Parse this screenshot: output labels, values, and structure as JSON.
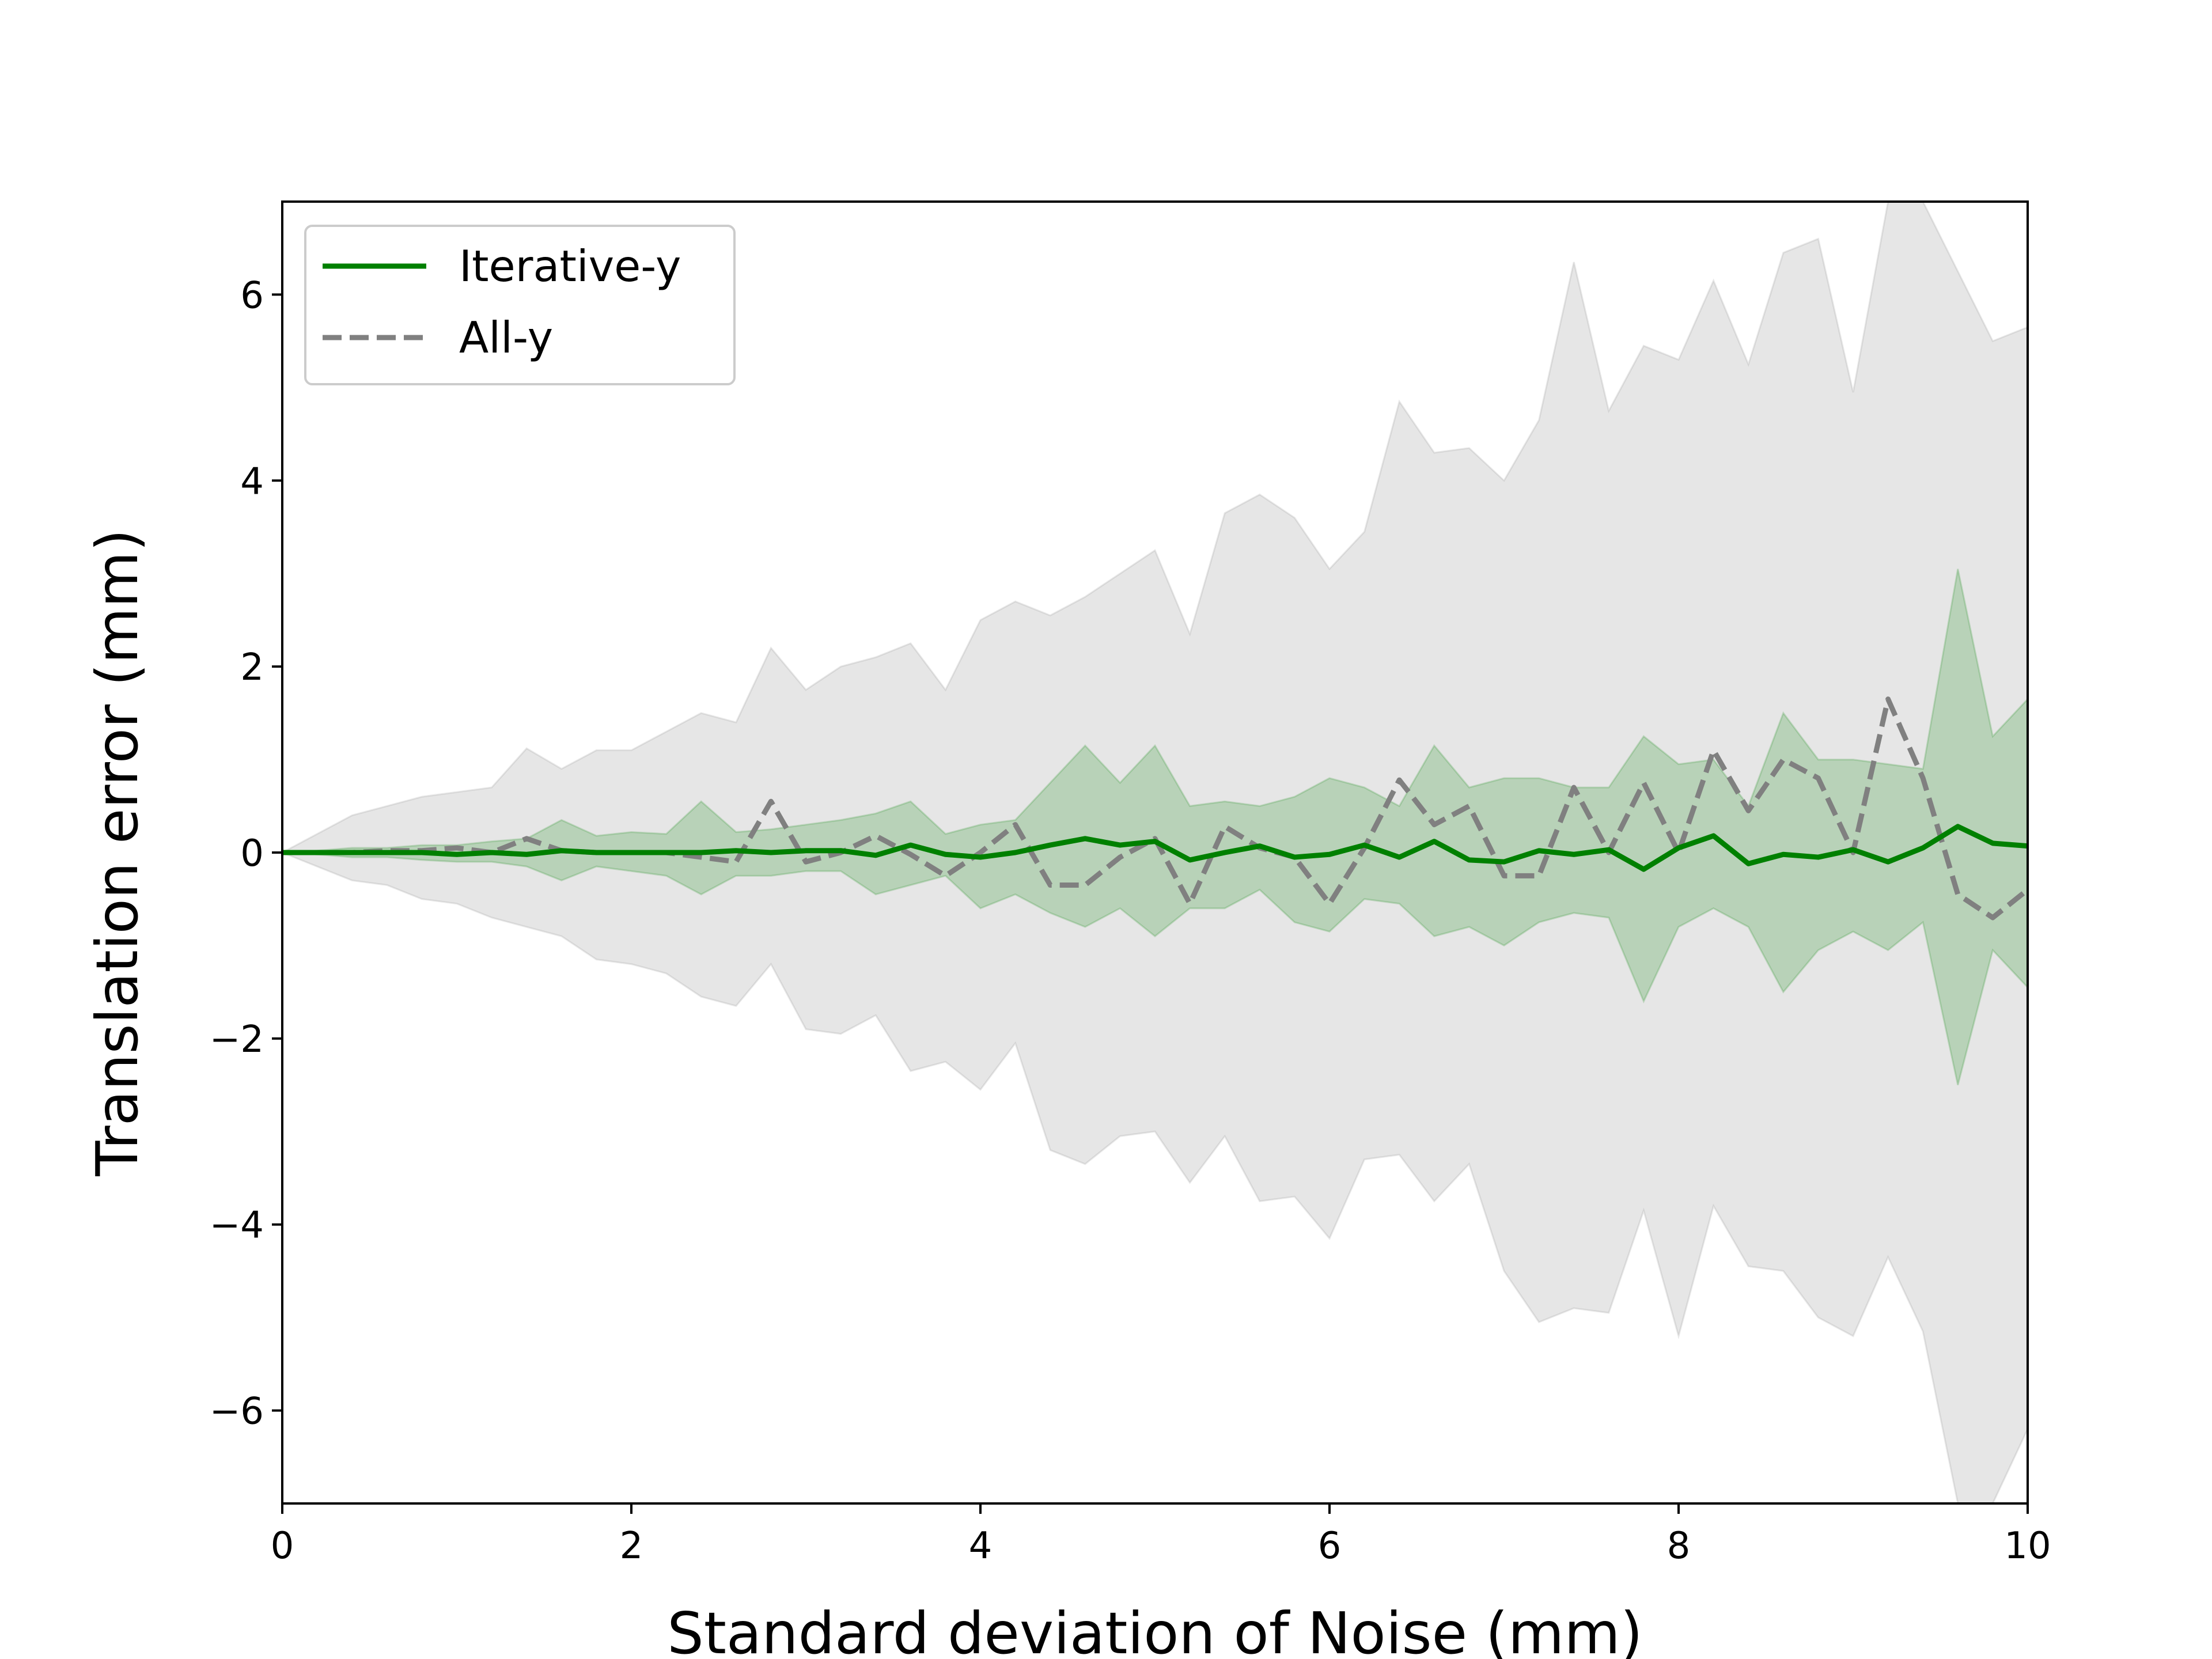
{
  "chart_data": {
    "type": "line",
    "xlabel": "Standard deviation of Noise (mm)",
    "ylabel": "Translation error (mm)",
    "xlim": [
      0,
      10
    ],
    "ylim": [
      -7,
      7
    ],
    "xticks": [
      0,
      2,
      4,
      6,
      8,
      10
    ],
    "xtick_labels": [
      "0",
      "2",
      "4",
      "6",
      "8",
      "10"
    ],
    "yticks": [
      -6,
      -4,
      -2,
      0,
      2,
      4,
      6
    ],
    "ytick_labels": [
      "−6",
      "−4",
      "−2",
      "0",
      "2",
      "4",
      "6"
    ],
    "grid": false,
    "legend_position": "upper-left",
    "x": [
      0,
      0.2,
      0.4,
      0.6,
      0.8,
      1.0,
      1.2,
      1.4,
      1.6,
      1.8,
      2.0,
      2.2,
      2.4,
      2.6,
      2.8,
      3.0,
      3.2,
      3.4,
      3.6,
      3.8,
      4.0,
      4.2,
      4.4,
      4.6,
      4.8,
      5.0,
      5.2,
      5.4,
      5.6,
      5.8,
      6.0,
      6.2,
      6.4,
      6.6,
      6.8,
      7.0,
      7.2,
      7.4,
      7.6,
      7.8,
      8.0,
      8.2,
      8.4,
      8.6,
      8.8,
      9.0,
      9.2,
      9.4,
      9.6,
      9.8,
      10.0
    ],
    "series": [
      {
        "name": "Iterative-y",
        "color": "#008000",
        "style": "solid",
        "values": [
          0,
          0,
          0,
          0,
          0,
          -0.02,
          0,
          -0.02,
          0.02,
          0,
          0,
          0,
          0,
          0.02,
          0,
          0.02,
          0.02,
          -0.03,
          0.08,
          -0.02,
          -0.05,
          0,
          0.08,
          0.15,
          0.08,
          0.12,
          -0.08,
          0,
          0.07,
          -0.05,
          -0.02,
          0.08,
          -0.05,
          0.12,
          -0.08,
          -0.1,
          0.02,
          -0.02,
          0.03,
          -0.18,
          0.05,
          0.18,
          -0.12,
          -0.02,
          -0.05,
          0.03,
          -0.1,
          0.05,
          0.28,
          0.1,
          0.07
        ],
        "band_upper": [
          0,
          0.02,
          0.05,
          0.05,
          0.08,
          0.08,
          0.12,
          0.15,
          0.35,
          0.18,
          0.22,
          0.2,
          0.55,
          0.22,
          0.25,
          0.3,
          0.35,
          0.42,
          0.55,
          0.2,
          0.3,
          0.35,
          0.75,
          1.15,
          0.75,
          1.15,
          0.5,
          0.55,
          0.5,
          0.6,
          0.8,
          0.7,
          0.5,
          1.15,
          0.7,
          0.8,
          0.8,
          0.7,
          0.7,
          1.25,
          0.95,
          1.0,
          0.5,
          1.5,
          1.0,
          1.0,
          0.95,
          0.9,
          3.05,
          1.25,
          1.65
        ],
        "band_lower": [
          0,
          -0.02,
          -0.05,
          -0.05,
          -0.08,
          -0.1,
          -0.1,
          -0.15,
          -0.3,
          -0.15,
          -0.2,
          -0.25,
          -0.45,
          -0.25,
          -0.25,
          -0.2,
          -0.2,
          -0.45,
          -0.35,
          -0.25,
          -0.6,
          -0.45,
          -0.65,
          -0.8,
          -0.6,
          -0.9,
          -0.6,
          -0.6,
          -0.4,
          -0.75,
          -0.85,
          -0.5,
          -0.55,
          -0.9,
          -0.8,
          -1.0,
          -0.75,
          -0.65,
          -0.7,
          -1.6,
          -0.8,
          -0.6,
          -0.8,
          -1.5,
          -1.05,
          -0.85,
          -1.05,
          -0.75,
          -2.5,
          -1.05,
          -1.45
        ]
      },
      {
        "name": "All-y",
        "color": "#808080",
        "style": "dashed",
        "values": [
          0,
          0,
          0,
          0.02,
          0.02,
          0.05,
          0,
          0.15,
          0.02,
          0,
          0,
          0,
          -0.05,
          -0.1,
          0.55,
          -0.1,
          0,
          0.18,
          -0.02,
          -0.25,
          0,
          0.3,
          -0.35,
          -0.35,
          -0.05,
          0.15,
          -0.55,
          0.28,
          0.05,
          -0.05,
          -0.55,
          0.05,
          0.78,
          0.3,
          0.5,
          -0.25,
          -0.25,
          0.7,
          0,
          0.75,
          0,
          1.1,
          0.45,
          1.0,
          0.8,
          0,
          1.65,
          0.8,
          -0.45,
          -0.7,
          -0.4
        ],
        "band_upper": [
          0,
          0.2,
          0.4,
          0.5,
          0.6,
          0.65,
          0.7,
          1.12,
          0.9,
          1.1,
          1.1,
          1.3,
          1.5,
          1.4,
          2.2,
          1.75,
          2.0,
          2.1,
          2.25,
          1.75,
          2.5,
          2.7,
          2.55,
          2.75,
          3.0,
          3.25,
          2.35,
          3.65,
          3.85,
          3.6,
          3.05,
          3.45,
          4.85,
          4.3,
          4.35,
          4.0,
          4.65,
          6.35,
          4.75,
          5.45,
          5.3,
          6.15,
          5.25,
          6.45,
          6.6,
          4.95,
          7.0,
          7.0,
          6.25,
          5.5,
          5.65
        ],
        "band_lower": [
          0,
          -0.15,
          -0.3,
          -0.35,
          -0.5,
          -0.55,
          -0.7,
          -0.8,
          -0.9,
          -1.15,
          -1.2,
          -1.3,
          -1.55,
          -1.65,
          -1.2,
          -1.9,
          -1.95,
          -1.75,
          -2.35,
          -2.25,
          -2.55,
          -2.05,
          -3.2,
          -3.35,
          -3.05,
          -3.0,
          -3.55,
          -3.05,
          -3.75,
          -3.7,
          -4.15,
          -3.3,
          -3.25,
          -3.75,
          -3.35,
          -4.5,
          -5.05,
          -4.9,
          -4.95,
          -3.85,
          -5.2,
          -3.8,
          -4.45,
          -4.5,
          -5.0,
          -5.2,
          -4.35,
          -5.15,
          -7.0,
          -7.0,
          -6.2
        ]
      }
    ]
  }
}
